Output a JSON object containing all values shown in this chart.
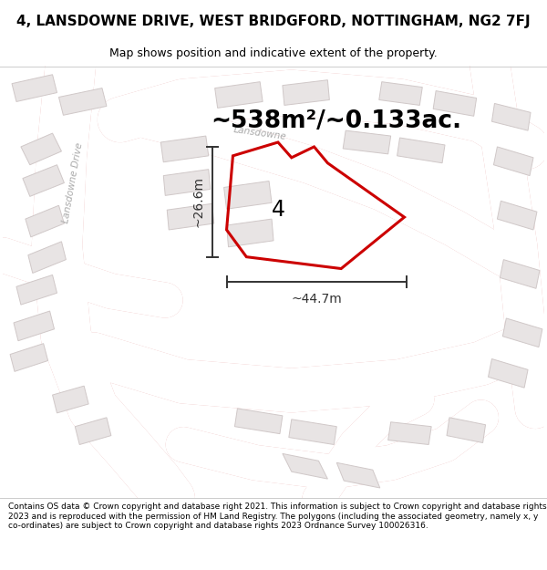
{
  "title": "4, LANSDOWNE DRIVE, WEST BRIDGFORD, NOTTINGHAM, NG2 7FJ",
  "subtitle": "Map shows position and indicative extent of the property.",
  "footer": "Contains OS data © Crown copyright and database right 2021. This information is subject to Crown copyright and database rights 2023 and is reproduced with the permission of HM Land Registry. The polygons (including the associated geometry, namely x, y co-ordinates) are subject to Crown copyright and database rights 2023 Ordnance Survey 100026316.",
  "area_label": "~538m²/~0.133ac.",
  "width_label": "~44.7m",
  "height_label": "~26.6m",
  "property_number": "4",
  "map_bg": "#f8f5f5",
  "road_fill": "#ffffff",
  "road_stroke": "#e8aaaa",
  "road_stroke_lw": 0.8,
  "bld_fill": "#e8e4e4",
  "bld_stroke": "#d0c8c8",
  "bld_stroke_lw": 0.7,
  "prop_color": "#cc0000",
  "prop_lw": 2.2,
  "dim_color": "#333333",
  "dim_lw": 1.4,
  "street_color": "#aaaaaa",
  "title_fs": 11,
  "subtitle_fs": 9,
  "area_fs": 19,
  "dim_fs": 10,
  "num_fs": 17,
  "footer_fs": 6.5,
  "street_label1": "Lansdowne Drive",
  "street_label2": "Lansdowne",
  "figw": 6.0,
  "figh": 6.25
}
